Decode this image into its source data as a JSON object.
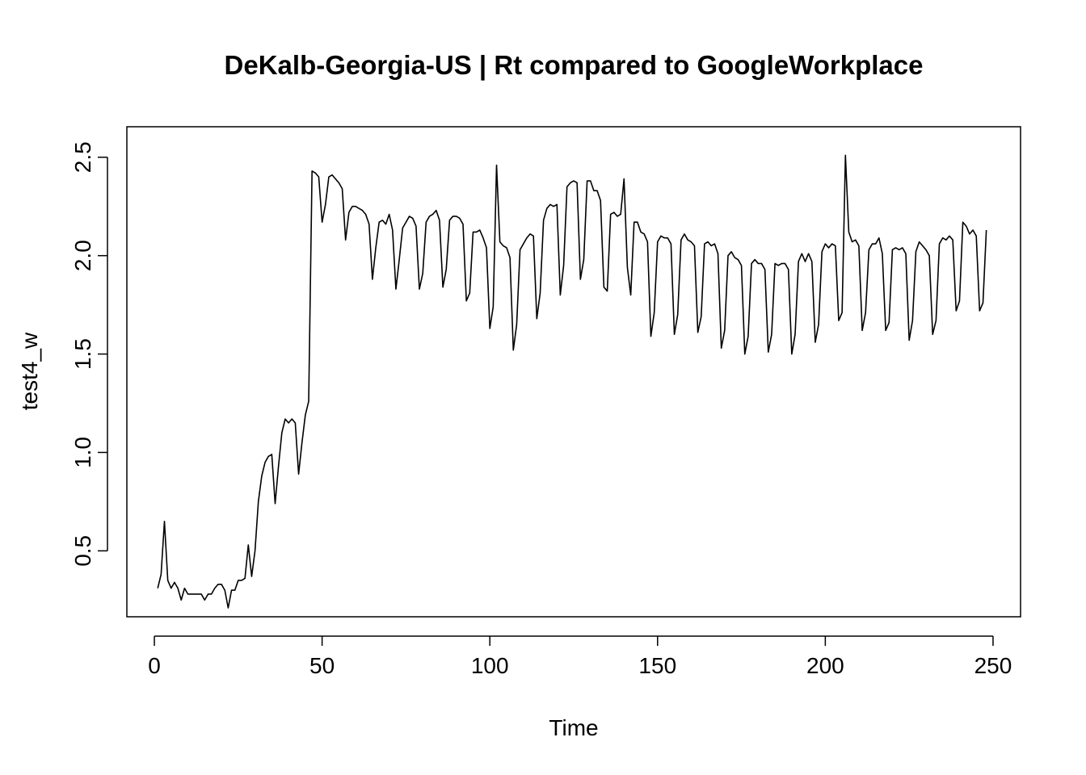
{
  "chart_data": {
    "type": "line",
    "title": "DeKalb-Georgia-US | Rt compared to GoogleWorkplace",
    "xlabel": "Time",
    "ylabel": "test4_w",
    "xlim": [
      -8.2,
      258.2
    ],
    "ylim": [
      0.165,
      2.655
    ],
    "xticks": [
      0,
      50,
      100,
      150,
      200,
      250
    ],
    "yticks": [
      0.5,
      1.0,
      1.5,
      2.0,
      2.5
    ],
    "x_tick_labels": [
      "0",
      "50",
      "100",
      "150",
      "200",
      "250"
    ],
    "y_tick_labels": [
      "0.5",
      "1.0",
      "1.5",
      "2.0",
      "2.5"
    ],
    "grid": false,
    "line_color": "#000000",
    "series": [
      {
        "x_start": 1,
        "x_step": 1,
        "values": [
          0.31,
          0.38,
          0.65,
          0.35,
          0.31,
          0.34,
          0.31,
          0.25,
          0.31,
          0.28,
          0.28,
          0.28,
          0.28,
          0.28,
          0.25,
          0.28,
          0.28,
          0.31,
          0.33,
          0.33,
          0.3,
          0.21,
          0.3,
          0.3,
          0.35,
          0.35,
          0.36,
          0.53,
          0.37,
          0.5,
          0.75,
          0.88,
          0.95,
          0.98,
          0.99,
          0.74,
          0.93,
          1.1,
          1.17,
          1.15,
          1.17,
          1.15,
          0.89,
          1.05,
          1.19,
          1.26,
          2.43,
          2.42,
          2.4,
          2.17,
          2.26,
          2.4,
          2.41,
          2.39,
          2.37,
          2.34,
          2.08,
          2.22,
          2.25,
          2.25,
          2.24,
          2.23,
          2.21,
          2.16,
          1.88,
          2.04,
          2.17,
          2.18,
          2.16,
          2.21,
          2.13,
          1.83,
          1.98,
          2.14,
          2.17,
          2.2,
          2.19,
          2.15,
          1.83,
          1.91,
          2.17,
          2.2,
          2.21,
          2.23,
          2.18,
          1.84,
          1.93,
          2.18,
          2.2,
          2.2,
          2.19,
          2.16,
          1.77,
          1.81,
          2.12,
          2.12,
          2.13,
          2.09,
          2.04,
          1.63,
          1.74,
          2.46,
          2.07,
          2.05,
          2.04,
          1.99,
          1.52,
          1.65,
          2.03,
          2.06,
          2.09,
          2.11,
          2.1,
          1.68,
          1.81,
          2.18,
          2.24,
          2.26,
          2.25,
          2.26,
          1.8,
          1.95,
          2.35,
          2.37,
          2.38,
          2.37,
          1.88,
          1.98,
          2.38,
          2.38,
          2.33,
          2.33,
          2.28,
          1.84,
          1.82,
          2.21,
          2.22,
          2.2,
          2.21,
          2.39,
          1.94,
          1.8,
          2.17,
          2.17,
          2.12,
          2.11,
          2.07,
          1.59,
          1.71,
          2.07,
          2.1,
          2.09,
          2.09,
          2.06,
          1.6,
          1.7,
          2.08,
          2.11,
          2.08,
          2.07,
          2.05,
          1.61,
          1.69,
          2.06,
          2.07,
          2.05,
          2.06,
          2.01,
          1.53,
          1.62,
          2.0,
          2.02,
          1.99,
          1.98,
          1.95,
          1.5,
          1.59,
          1.96,
          1.98,
          1.96,
          1.96,
          1.93,
          1.51,
          1.6,
          1.96,
          1.95,
          1.96,
          1.96,
          1.93,
          1.5,
          1.6,
          1.97,
          2.01,
          1.97,
          2.01,
          1.97,
          1.56,
          1.65,
          2.02,
          2.06,
          2.04,
          2.06,
          2.05,
          1.67,
          1.71,
          2.51,
          2.12,
          2.07,
          2.08,
          2.05,
          1.62,
          1.71,
          2.03,
          2.06,
          2.06,
          2.09,
          2.01,
          1.62,
          1.66,
          2.03,
          2.04,
          2.03,
          2.04,
          2.01,
          1.57,
          1.67,
          2.02,
          2.07,
          2.05,
          2.03,
          2.0,
          1.6,
          1.67,
          2.06,
          2.09,
          2.08,
          2.1,
          2.08,
          1.72,
          1.77,
          2.17,
          2.15,
          2.11,
          2.13,
          2.1,
          1.72,
          1.76,
          2.13
        ]
      }
    ]
  }
}
